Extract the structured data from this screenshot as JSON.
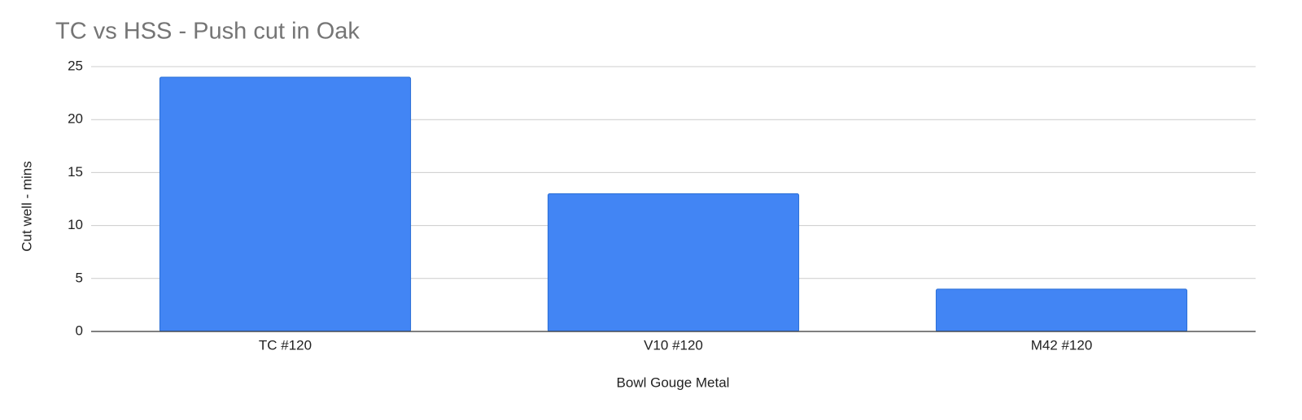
{
  "chart_data": {
    "type": "bar",
    "title": "TC vs HSS - Push cut in Oak",
    "x_label": "Bowl Gouge Metal",
    "y_label": "Cut well - mins",
    "categories": [
      "TC #120",
      "V10 #120",
      "M42 #120"
    ],
    "values": [
      24,
      13,
      4
    ],
    "color": "#4285f4",
    "ylim": [
      0,
      25
    ],
    "yticks": [
      0,
      5,
      10,
      15,
      20,
      25
    ],
    "grid": true
  }
}
